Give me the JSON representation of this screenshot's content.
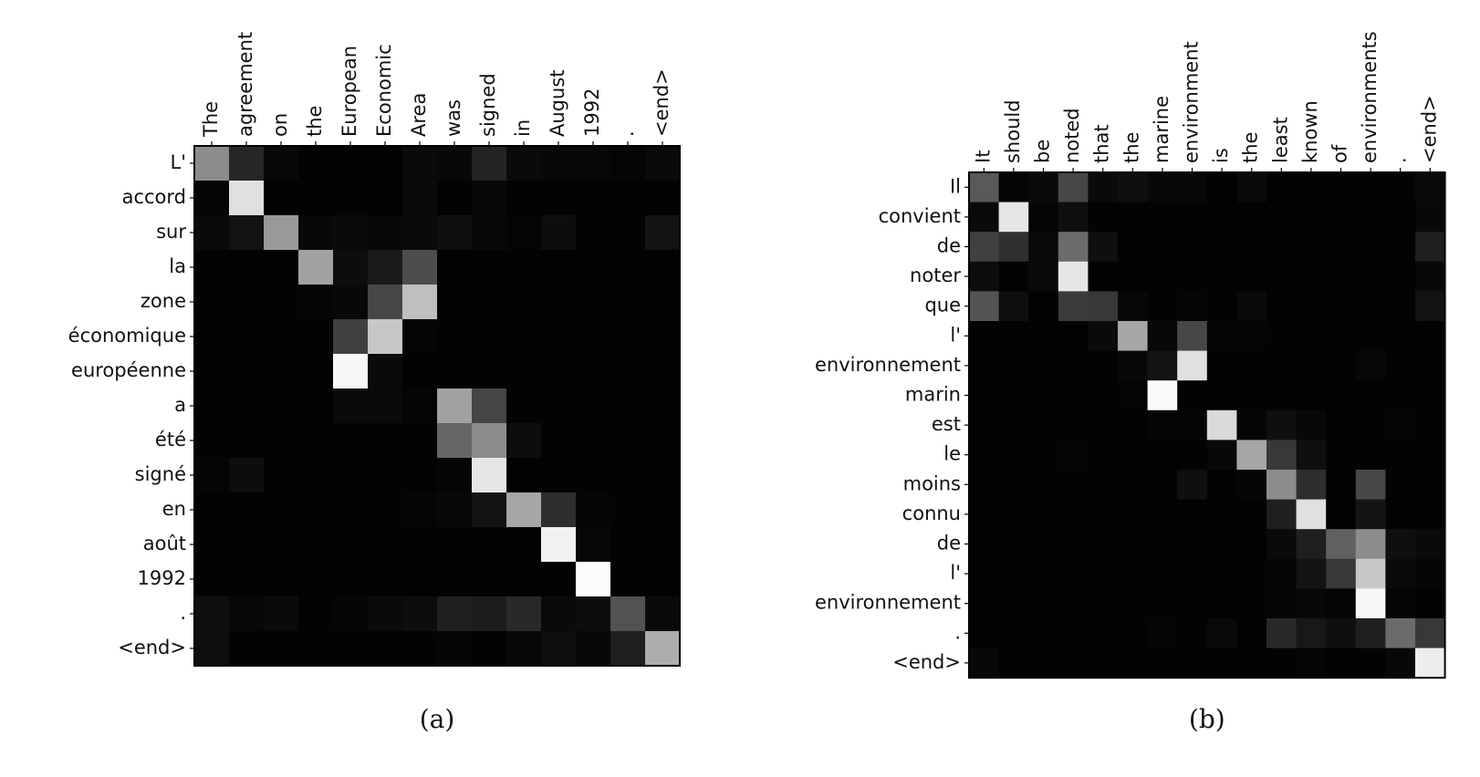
{
  "chart_data": [
    {
      "type": "heatmap",
      "caption": "(a)",
      "x_labels": [
        "The",
        "agreement",
        "on",
        "the",
        "European",
        "Economic",
        "Area",
        "was",
        "signed",
        "in",
        "August",
        "1992",
        ".",
        "<end>"
      ],
      "y_labels": [
        "L'",
        "accord",
        "sur",
        "la",
        "zone",
        "économique",
        "européenne",
        "a",
        "été",
        "signé",
        "en",
        "août",
        "1992",
        ".",
        "<end>"
      ],
      "value_range": [
        0,
        1
      ],
      "colormap": "gray",
      "values": [
        [
          0.55,
          0.15,
          0.03,
          0.01,
          0.01,
          0.01,
          0.04,
          0.03,
          0.14,
          0.04,
          0.03,
          0.03,
          0.02,
          0.04
        ],
        [
          0.02,
          0.88,
          0.01,
          0.01,
          0.01,
          0.01,
          0.04,
          0.01,
          0.03,
          0.01,
          0.01,
          0.01,
          0.01,
          0.01
        ],
        [
          0.04,
          0.07,
          0.6,
          0.03,
          0.04,
          0.03,
          0.04,
          0.06,
          0.03,
          0.02,
          0.05,
          0.01,
          0.01,
          0.07
        ],
        [
          0.01,
          0.01,
          0.01,
          0.63,
          0.05,
          0.1,
          0.3,
          0.01,
          0.01,
          0.01,
          0.01,
          0.01,
          0.01,
          0.01
        ],
        [
          0.01,
          0.01,
          0.01,
          0.02,
          0.03,
          0.28,
          0.75,
          0.01,
          0.01,
          0.01,
          0.01,
          0.01,
          0.01,
          0.01
        ],
        [
          0.01,
          0.01,
          0.01,
          0.01,
          0.25,
          0.78,
          0.02,
          0.01,
          0.01,
          0.01,
          0.01,
          0.01,
          0.01,
          0.01
        ],
        [
          0.01,
          0.01,
          0.01,
          0.01,
          0.97,
          0.04,
          0.01,
          0.01,
          0.01,
          0.01,
          0.01,
          0.01,
          0.01,
          0.01
        ],
        [
          0.01,
          0.01,
          0.01,
          0.01,
          0.04,
          0.04,
          0.02,
          0.63,
          0.27,
          0.01,
          0.01,
          0.01,
          0.01,
          0.01
        ],
        [
          0.01,
          0.01,
          0.01,
          0.01,
          0.01,
          0.01,
          0.01,
          0.4,
          0.55,
          0.05,
          0.01,
          0.01,
          0.01,
          0.01
        ],
        [
          0.02,
          0.05,
          0.01,
          0.01,
          0.01,
          0.01,
          0.01,
          0.02,
          0.9,
          0.01,
          0.01,
          0.01,
          0.01,
          0.01
        ],
        [
          0.01,
          0.01,
          0.01,
          0.01,
          0.01,
          0.01,
          0.02,
          0.03,
          0.07,
          0.65,
          0.18,
          0.02,
          0.01,
          0.01
        ],
        [
          0.01,
          0.01,
          0.01,
          0.01,
          0.01,
          0.01,
          0.01,
          0.01,
          0.01,
          0.01,
          0.95,
          0.03,
          0.01,
          0.01
        ],
        [
          0.01,
          0.01,
          0.01,
          0.01,
          0.01,
          0.01,
          0.01,
          0.01,
          0.01,
          0.01,
          0.01,
          0.99,
          0.01,
          0.01
        ],
        [
          0.06,
          0.03,
          0.04,
          0.01,
          0.02,
          0.04,
          0.05,
          0.12,
          0.11,
          0.16,
          0.04,
          0.05,
          0.32,
          0.04
        ],
        [
          0.06,
          0.01,
          0.01,
          0.01,
          0.01,
          0.01,
          0.01,
          0.02,
          0.01,
          0.03,
          0.06,
          0.03,
          0.12,
          0.68
        ]
      ]
    },
    {
      "type": "heatmap",
      "caption": "(b)",
      "x_labels": [
        "It",
        "should",
        "be",
        "noted",
        "that",
        "the",
        "marine",
        "environment",
        "is",
        "the",
        "least",
        "known",
        "of",
        "environments",
        ".",
        "<end>"
      ],
      "y_labels": [
        "Il",
        "convient",
        "de",
        "noter",
        "que",
        "l'",
        "environnement",
        "marin",
        "est",
        "le",
        "moins",
        "connu",
        "de",
        "l'",
        "environnement",
        ".",
        "<end>"
      ],
      "value_range": [
        0,
        1
      ],
      "colormap": "gray",
      "values": [
        [
          0.35,
          0.02,
          0.04,
          0.28,
          0.04,
          0.06,
          0.03,
          0.03,
          0.01,
          0.04,
          0.01,
          0.01,
          0.01,
          0.01,
          0.01,
          0.04
        ],
        [
          0.04,
          0.9,
          0.02,
          0.06,
          0.01,
          0.01,
          0.01,
          0.01,
          0.01,
          0.01,
          0.01,
          0.01,
          0.01,
          0.01,
          0.01,
          0.03
        ],
        [
          0.25,
          0.19,
          0.04,
          0.42,
          0.06,
          0.01,
          0.01,
          0.01,
          0.01,
          0.01,
          0.01,
          0.01,
          0.01,
          0.01,
          0.01,
          0.12
        ],
        [
          0.05,
          0.01,
          0.04,
          0.9,
          0.01,
          0.01,
          0.01,
          0.01,
          0.01,
          0.01,
          0.01,
          0.01,
          0.01,
          0.01,
          0.01,
          0.03
        ],
        [
          0.33,
          0.06,
          0.01,
          0.23,
          0.22,
          0.03,
          0.01,
          0.02,
          0.01,
          0.04,
          0.01,
          0.01,
          0.01,
          0.01,
          0.01,
          0.07
        ],
        [
          0.01,
          0.01,
          0.01,
          0.01,
          0.04,
          0.65,
          0.03,
          0.28,
          0.02,
          0.02,
          0.01,
          0.01,
          0.01,
          0.01,
          0.01,
          0.01
        ],
        [
          0.01,
          0.01,
          0.01,
          0.01,
          0.01,
          0.03,
          0.07,
          0.88,
          0.01,
          0.01,
          0.01,
          0.01,
          0.01,
          0.03,
          0.01,
          0.01
        ],
        [
          0.01,
          0.01,
          0.01,
          0.01,
          0.01,
          0.02,
          0.98,
          0.01,
          0.01,
          0.01,
          0.01,
          0.01,
          0.01,
          0.01,
          0.01,
          0.01
        ],
        [
          0.01,
          0.01,
          0.01,
          0.01,
          0.01,
          0.01,
          0.02,
          0.02,
          0.85,
          0.02,
          0.06,
          0.03,
          0.01,
          0.01,
          0.02,
          0.01
        ],
        [
          0.01,
          0.01,
          0.01,
          0.02,
          0.01,
          0.01,
          0.01,
          0.01,
          0.03,
          0.65,
          0.22,
          0.06,
          0.01,
          0.01,
          0.01,
          0.01
        ],
        [
          0.01,
          0.01,
          0.01,
          0.01,
          0.01,
          0.01,
          0.01,
          0.06,
          0.01,
          0.02,
          0.55,
          0.18,
          0.01,
          0.28,
          0.01,
          0.01
        ],
        [
          0.01,
          0.01,
          0.01,
          0.01,
          0.01,
          0.01,
          0.01,
          0.01,
          0.01,
          0.01,
          0.12,
          0.88,
          0.01,
          0.08,
          0.01,
          0.01
        ],
        [
          0.01,
          0.01,
          0.01,
          0.01,
          0.01,
          0.01,
          0.01,
          0.01,
          0.01,
          0.01,
          0.04,
          0.12,
          0.38,
          0.55,
          0.06,
          0.04
        ],
        [
          0.01,
          0.01,
          0.01,
          0.01,
          0.01,
          0.01,
          0.01,
          0.01,
          0.01,
          0.01,
          0.02,
          0.08,
          0.22,
          0.78,
          0.04,
          0.02
        ],
        [
          0.01,
          0.01,
          0.01,
          0.01,
          0.01,
          0.01,
          0.01,
          0.01,
          0.01,
          0.01,
          0.02,
          0.03,
          0.02,
          0.97,
          0.02,
          0.01
        ],
        [
          0.01,
          0.01,
          0.01,
          0.01,
          0.01,
          0.01,
          0.02,
          0.01,
          0.04,
          0.01,
          0.16,
          0.09,
          0.06,
          0.12,
          0.42,
          0.22
        ],
        [
          0.03,
          0.01,
          0.01,
          0.01,
          0.01,
          0.01,
          0.01,
          0.01,
          0.01,
          0.01,
          0.01,
          0.02,
          0.01,
          0.01,
          0.03,
          0.93
        ]
      ]
    }
  ]
}
